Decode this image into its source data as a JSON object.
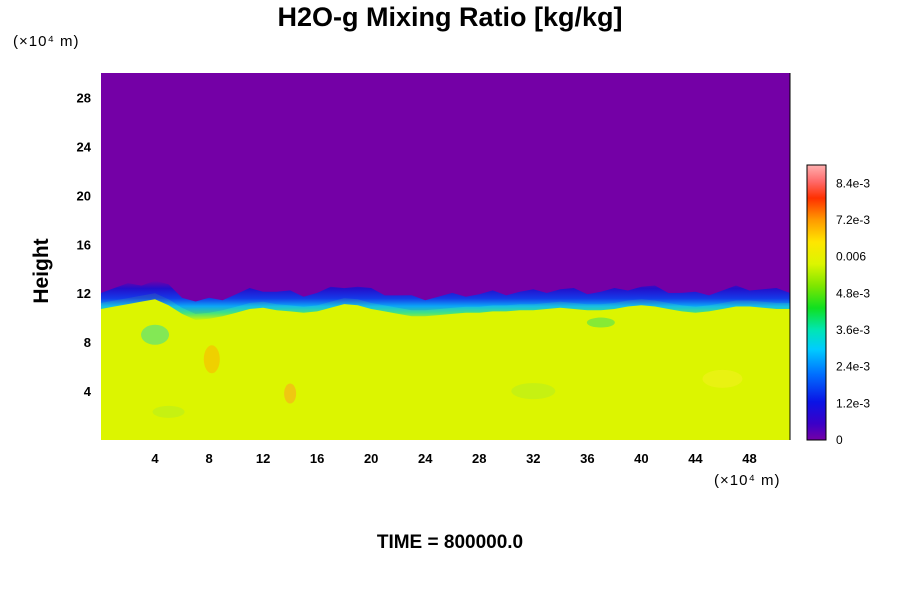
{
  "chart_data": {
    "type": "heatmap",
    "title": "H2O-g Mixing Ratio [kg/kg]",
    "xlabel": "",
    "ylabel": "Height",
    "x_unit_label": "(×10⁴ m)",
    "y_unit_label": "(×10⁴ m)",
    "xlim": [
      0,
      51
    ],
    "ylim": [
      0,
      30
    ],
    "x_ticks": [
      "4",
      "8",
      "12",
      "16",
      "20",
      "24",
      "28",
      "32",
      "36",
      "40",
      "44",
      "48"
    ],
    "x_tick_values": [
      4,
      8,
      12,
      16,
      20,
      24,
      28,
      32,
      36,
      40,
      44,
      48
    ],
    "y_ticks": [
      "4",
      "8",
      "12",
      "16",
      "20",
      "24",
      "28"
    ],
    "y_tick_values": [
      4,
      8,
      12,
      16,
      20,
      24,
      28
    ],
    "colorbar": {
      "min": 0,
      "max": 0.009,
      "tick_labels": [
        "0",
        "1.2e-3",
        "2.4e-3",
        "3.6e-3",
        "4.8e-3",
        "0.006",
        "7.2e-3",
        "8.4e-3"
      ],
      "tick_values": [
        0,
        0.0012,
        0.0024,
        0.0036,
        0.0048,
        0.006,
        0.0072,
        0.0084
      ]
    },
    "field": {
      "upper_value": 0,
      "lower_value": 0.0062,
      "interface_height": [
        11.2,
        11.4,
        11.6,
        11.8,
        12.0,
        11.5,
        10.8,
        10.3,
        10.4,
        10.6,
        10.9,
        11.2,
        11.3,
        11.1,
        11.0,
        10.9,
        11.0,
        11.3,
        11.6,
        11.5,
        11.2,
        11.0,
        10.8,
        10.6,
        10.6,
        10.7,
        10.8,
        10.9,
        10.9,
        11.0,
        11.0,
        11.1,
        11.1,
        11.2,
        11.3,
        11.2,
        11.1,
        11.1,
        11.2,
        11.4,
        11.5,
        11.4,
        11.2,
        11.0,
        10.9,
        11.0,
        11.2,
        11.4,
        11.4,
        11.3,
        11.2,
        11.2
      ]
    }
  },
  "footer": {
    "time_label": "TIME = 800000.0"
  }
}
